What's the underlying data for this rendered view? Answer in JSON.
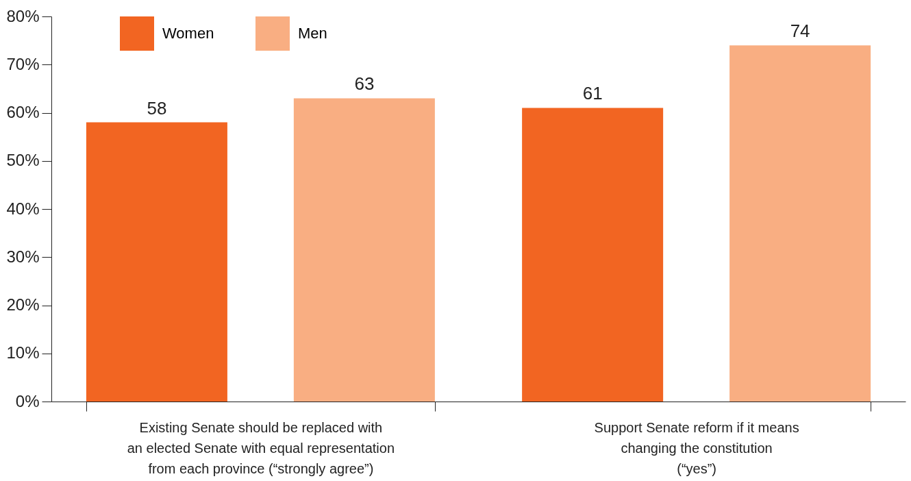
{
  "chart_data": {
    "type": "bar",
    "categories": [
      "Existing Senate should be replaced with\nan elected Senate with equal representation\nfrom each province (“strongly agree”)",
      "Support Senate reform if it means\nchanging the constitution\n(“yes”)"
    ],
    "series": [
      {
        "name": "Women",
        "color": "#f26522",
        "values": [
          58,
          61
        ]
      },
      {
        "name": "Men",
        "color": "#f9ae82",
        "values": [
          63,
          74
        ]
      }
    ],
    "ylim": [
      0,
      80
    ],
    "yticks": [
      {
        "value": 0,
        "label": "0%"
      },
      {
        "value": 10,
        "label": "10%"
      },
      {
        "value": 20,
        "label": "20%"
      },
      {
        "value": 30,
        "label": "30%"
      },
      {
        "value": 40,
        "label": "40%"
      },
      {
        "value": 50,
        "label": "50%"
      },
      {
        "value": 60,
        "label": "60%"
      },
      {
        "value": 70,
        "label": "70%"
      },
      {
        "value": 80,
        "label": "80%"
      }
    ],
    "data_labels": true,
    "grid": false,
    "legend": "top left"
  }
}
